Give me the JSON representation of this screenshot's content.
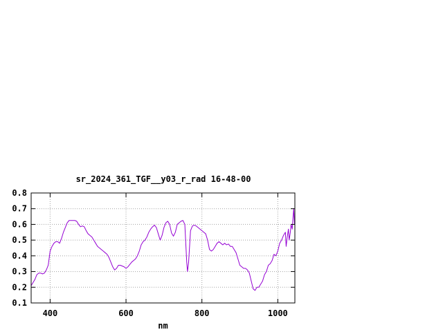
{
  "chart_data": {
    "type": "line",
    "title": "sr_2024_361_TGF__y03_r_rad 16-48-00",
    "xlabel": "nm",
    "ylabel": "",
    "xlim": [
      350,
      1045
    ],
    "ylim": [
      0.1,
      0.8
    ],
    "xticks": [
      400,
      600,
      800,
      1000
    ],
    "yticks": [
      0.1,
      0.2,
      0.3,
      0.4,
      0.5,
      0.6,
      0.7,
      0.8
    ],
    "xtick_labels": [
      "400",
      "600",
      "800",
      "1000"
    ],
    "ytick_labels": [
      "0.1",
      "0.2",
      "0.3",
      "0.4",
      "0.5",
      "0.6",
      "0.7",
      "0.8"
    ],
    "grid": true,
    "series": [
      {
        "color": "#9400d3",
        "x": [
          350,
          355,
          360,
          365,
          370,
          375,
          380,
          385,
          390,
          395,
          400,
          405,
          410,
          415,
          420,
          425,
          430,
          435,
          440,
          445,
          450,
          455,
          460,
          465,
          470,
          475,
          480,
          485,
          490,
          495,
          500,
          505,
          510,
          515,
          520,
          525,
          530,
          535,
          540,
          545,
          550,
          555,
          560,
          565,
          570,
          575,
          580,
          585,
          590,
          595,
          600,
          605,
          610,
          615,
          620,
          625,
          630,
          635,
          640,
          645,
          650,
          655,
          660,
          665,
          670,
          675,
          680,
          685,
          690,
          695,
          700,
          705,
          710,
          715,
          720,
          725,
          730,
          735,
          740,
          745,
          750,
          755,
          760,
          762,
          765,
          768,
          770,
          775,
          780,
          785,
          790,
          795,
          800,
          805,
          810,
          815,
          820,
          825,
          830,
          835,
          840,
          845,
          850,
          855,
          860,
          865,
          870,
          875,
          880,
          885,
          890,
          895,
          900,
          905,
          910,
          915,
          920,
          925,
          930,
          935,
          940,
          945,
          950,
          955,
          960,
          965,
          970,
          975,
          980,
          985,
          990,
          995,
          1000,
          1005,
          1010,
          1015,
          1020,
          1022,
          1025,
          1028,
          1030,
          1033,
          1035,
          1038,
          1040,
          1042,
          1044,
          1045
        ],
        "y": [
          0.21,
          0.23,
          0.25,
          0.28,
          0.29,
          0.29,
          0.285,
          0.29,
          0.31,
          0.34,
          0.43,
          0.46,
          0.48,
          0.49,
          0.49,
          0.48,
          0.51,
          0.55,
          0.58,
          0.61,
          0.625,
          0.625,
          0.625,
          0.625,
          0.62,
          0.6,
          0.585,
          0.59,
          0.585,
          0.56,
          0.54,
          0.53,
          0.52,
          0.5,
          0.48,
          0.46,
          0.45,
          0.44,
          0.43,
          0.42,
          0.41,
          0.39,
          0.36,
          0.33,
          0.31,
          0.32,
          0.34,
          0.34,
          0.335,
          0.33,
          0.32,
          0.33,
          0.345,
          0.36,
          0.37,
          0.38,
          0.4,
          0.43,
          0.47,
          0.49,
          0.5,
          0.52,
          0.55,
          0.57,
          0.585,
          0.595,
          0.58,
          0.54,
          0.5,
          0.53,
          0.58,
          0.61,
          0.62,
          0.6,
          0.545,
          0.525,
          0.55,
          0.6,
          0.61,
          0.62,
          0.625,
          0.6,
          0.36,
          0.3,
          0.36,
          0.48,
          0.56,
          0.59,
          0.595,
          0.59,
          0.58,
          0.57,
          0.56,
          0.55,
          0.54,
          0.5,
          0.44,
          0.43,
          0.44,
          0.46,
          0.48,
          0.49,
          0.48,
          0.47,
          0.48,
          0.47,
          0.475,
          0.46,
          0.46,
          0.44,
          0.42,
          0.38,
          0.34,
          0.33,
          0.32,
          0.32,
          0.31,
          0.29,
          0.24,
          0.19,
          0.18,
          0.2,
          0.2,
          0.22,
          0.24,
          0.28,
          0.3,
          0.34,
          0.35,
          0.37,
          0.41,
          0.4,
          0.43,
          0.48,
          0.5,
          0.53,
          0.55,
          0.46,
          0.52,
          0.57,
          0.5,
          0.55,
          0.6,
          0.57,
          0.64,
          0.7,
          0.6,
          0.66
        ]
      }
    ]
  }
}
